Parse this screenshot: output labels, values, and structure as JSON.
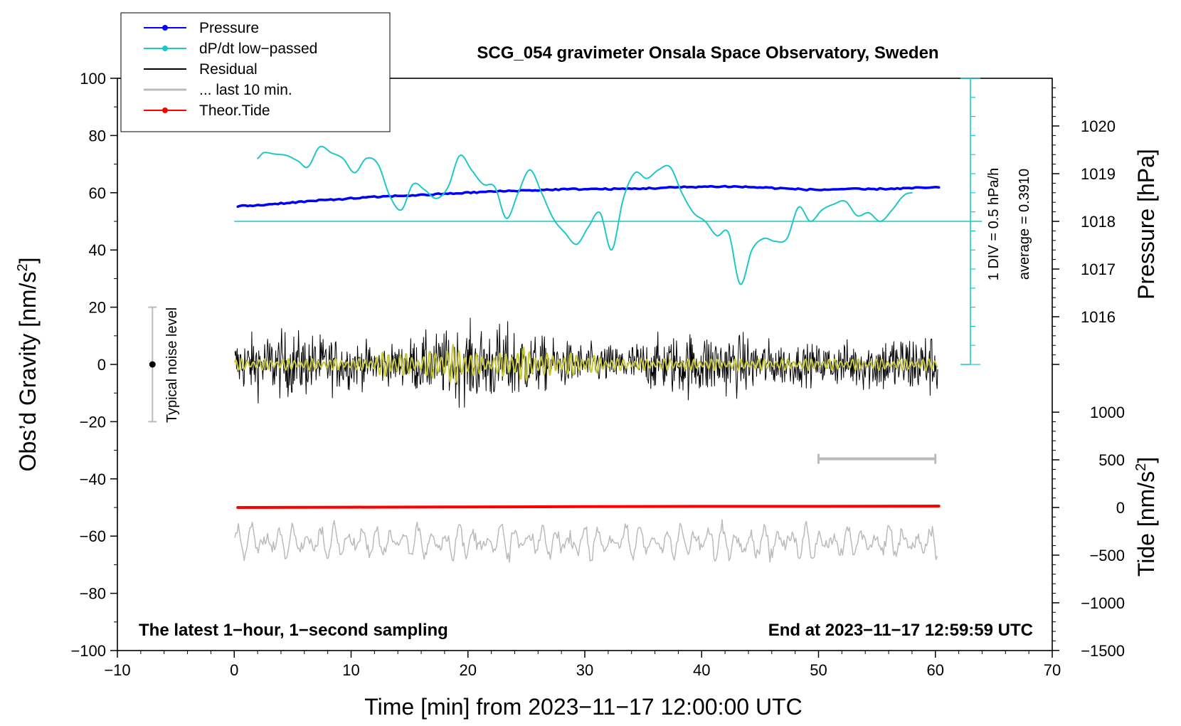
{
  "chart_data": {
    "type": "line",
    "title": "SCG_054 gravimeter Onsala Space Observatory, Sweden",
    "xlabel": "Time [min] from 2023−11−17 12:00:00 UTC",
    "ylabel": "Obs’d Gravity [nm/s",
    "ylabel_sup": "2",
    "ylabel_close": "]",
    "y2label": "Pressure [hPa]",
    "y3label": "Tide [nm/s",
    "y3label_sup": "2",
    "y3label_close": "]",
    "xlim": [
      -10,
      70
    ],
    "ylim": [
      -100,
      100
    ],
    "x_ticks": [
      "−10",
      "0",
      "10",
      "20",
      "30",
      "40",
      "50",
      "60",
      "70"
    ],
    "x_tick_values": [
      -10,
      0,
      10,
      20,
      30,
      40,
      50,
      60,
      70
    ],
    "y_ticks": [
      "−100",
      "−80",
      "−60",
      "−40",
      "−20",
      "0",
      "20",
      "40",
      "60",
      "80",
      "100"
    ],
    "y_tick_values": [
      -100,
      -80,
      -60,
      -40,
      -20,
      0,
      20,
      40,
      60,
      80,
      100
    ],
    "pressure_ticks": [
      "1016",
      "1017",
      "1018",
      "1019",
      "1020"
    ],
    "pressure_tick_values": [
      1016,
      1017,
      1018,
      1019,
      1020
    ],
    "pressure_range": [
      1015.0,
      1021.0
    ],
    "tide_ticks": [
      "−1500",
      "−1000",
      "−500",
      "0",
      "500",
      "1000"
    ],
    "tide_tick_values": [
      -1500,
      -1000,
      -500,
      0,
      500,
      1000
    ],
    "tide_range": [
      -1500,
      1000
    ],
    "legend": [
      "Pressure",
      "dP/dt low−passed",
      "Residual",
      "... last 10 min.",
      "Theor.Tide"
    ],
    "legend_colors": [
      "#0000ff",
      "#1ec8c8",
      "#000000",
      "#bbbbbb",
      "#ff0000"
    ],
    "legend_has_marker": [
      true,
      true,
      false,
      false,
      true
    ],
    "annotation_left": "The latest 1−hour, 1−second sampling",
    "annotation_right": "End at 2023−11−17 12:59:59 UTC",
    "scale_bar_labels": [
      "1 DIV = 0.5 hPa/h",
      "average = 0.3910"
    ],
    "noise_label": "Typical noise level",
    "noise_level": {
      "x": -7,
      "center": 0,
      "low": -20,
      "high": 20
    },
    "dpdt_baseline_y": 50,
    "scale_bar": {
      "x": 63,
      "y_top": 100,
      "y_bottom": 0,
      "divisions": 15
    },
    "last10_bar": {
      "x_start": 50,
      "x_end": 60,
      "y": -33
    },
    "series": [
      {
        "name": "Pressure",
        "color": "#0000ff",
        "x": [
          0.3,
          2,
          4,
          6,
          8,
          10,
          12,
          14,
          16,
          18,
          20,
          22,
          24,
          26,
          28,
          30,
          32,
          34,
          36,
          38,
          40,
          42,
          44,
          46,
          48,
          50,
          52,
          54,
          56,
          58,
          60.3
        ],
        "y": [
          55.3,
          55.6,
          56.3,
          56.9,
          57.5,
          58.0,
          58.5,
          58.9,
          59.2,
          59.6,
          60.0,
          60.4,
          60.7,
          60.9,
          61.2,
          61.3,
          61.3,
          61.4,
          61.6,
          61.9,
          62.1,
          62.2,
          62.0,
          61.7,
          61.3,
          61.0,
          61.3,
          61.2,
          61.4,
          61.6,
          61.9
        ]
      },
      {
        "name": "dP/dt low−passed",
        "color": "#1ec8c8",
        "x": [
          2,
          2.5,
          3.5,
          4.5,
          5.5,
          6.3,
          7.3,
          8.3,
          9.3,
          10.3,
          11.3,
          12.3,
          13.3,
          14.3,
          15.3,
          16.3,
          17.3,
          18.3,
          19.3,
          20.3,
          21.3,
          22.3,
          23.3,
          24.3,
          25.3,
          26.3,
          27.3,
          28.3,
          29.3,
          30.3,
          31.3,
          32.3,
          33.3,
          34.3,
          35.3,
          36.3,
          37.3,
          38.3,
          39.3,
          40.3,
          41.3,
          42.3,
          43.3,
          44.3,
          45.3,
          46.3,
          47.3,
          48.3,
          49.3,
          50.3,
          51.3,
          52.3,
          53.3,
          54.3,
          55.3,
          56.3,
          57.3,
          58.0
        ],
        "y": [
          72,
          74,
          73.5,
          73,
          71,
          69,
          76,
          74,
          72,
          67,
          72,
          70,
          59,
          54,
          63,
          61,
          58,
          62,
          73,
          68,
          63,
          62,
          51,
          60,
          68,
          60,
          51,
          46,
          42,
          48,
          53,
          40,
          58,
          67,
          65,
          68,
          69,
          60,
          53,
          50,
          45,
          46,
          28,
          40,
          44,
          43,
          44,
          55,
          50,
          54,
          56,
          57,
          52,
          53,
          50,
          54,
          59,
          60
        ]
      },
      {
        "name": "Theor.Tide",
        "color": "#ff0000",
        "x": [
          0.3,
          10,
          20,
          30,
          40,
          50,
          60.3
        ],
        "y": [
          -50.0,
          -49.9,
          -49.8,
          -49.7,
          -49.6,
          -49.6,
          -49.5
        ]
      }
    ]
  }
}
